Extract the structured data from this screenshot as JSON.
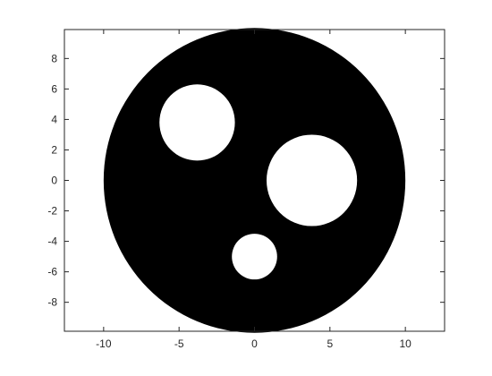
{
  "chart_data": {
    "type": "scatter",
    "title": "",
    "xlabel": "",
    "ylabel": "",
    "xlim": [
      -12.6,
      12.6
    ],
    "ylim": [
      -9.9,
      9.9
    ],
    "x_ticks": [
      -10,
      -5,
      0,
      5,
      10
    ],
    "y_ticks": [
      8,
      6,
      4,
      2,
      0,
      -2,
      -4,
      -6,
      -8
    ],
    "x_tick_labels": [
      "-10",
      "-5",
      "0",
      "5",
      "10"
    ],
    "y_tick_labels": [
      "8",
      "6",
      "4",
      "2",
      "0",
      "-2",
      "-4",
      "-6",
      "-8"
    ],
    "grid": false,
    "shapes": [
      {
        "name": "outer-disk",
        "center": [
          0,
          0
        ],
        "radius": 10,
        "fill": "#000000"
      },
      {
        "name": "hole-upper-left",
        "center": [
          -3.8,
          3.8
        ],
        "radius": 2.5,
        "fill": "#ffffff"
      },
      {
        "name": "hole-right",
        "center": [
          3.8,
          0
        ],
        "radius": 3.0,
        "fill": "#ffffff"
      },
      {
        "name": "hole-bottom",
        "center": [
          0,
          -5
        ],
        "radius": 1.5,
        "fill": "#ffffff"
      }
    ],
    "colors": {
      "foreground": "#000000",
      "background": "#ffffff",
      "axis": "#262626"
    }
  }
}
